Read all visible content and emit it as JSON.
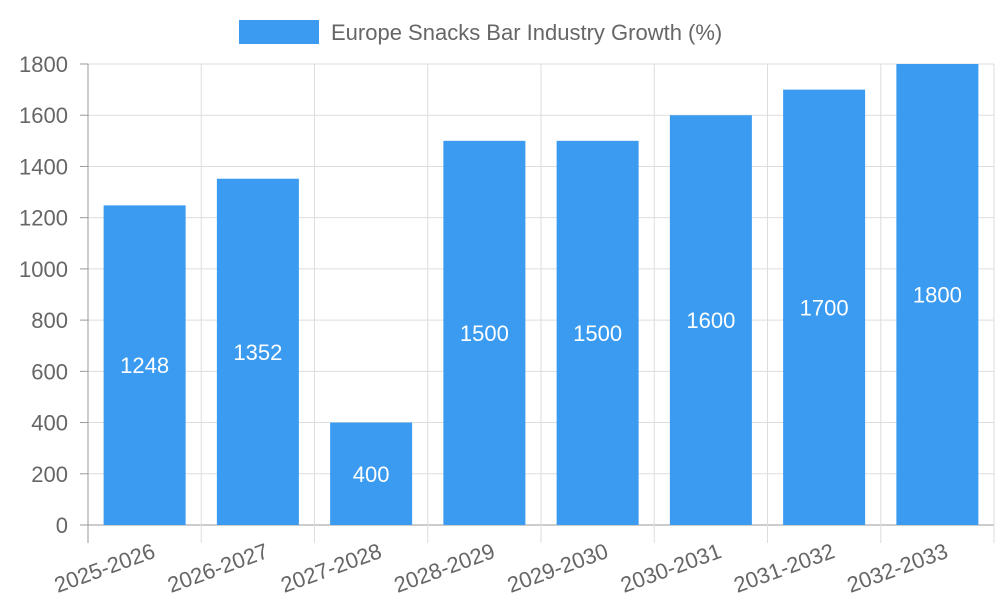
{
  "chart_data": {
    "type": "bar",
    "title": "",
    "categories": [
      "2025-2026",
      "2026-2027",
      "2027-2028",
      "2028-2029",
      "2029-2030",
      "2030-2031",
      "2031-2032",
      "2032-2033"
    ],
    "series": [
      {
        "name": "Europe Snacks Bar Industry Growth (%)",
        "values": [
          1248,
          1352,
          400,
          1500,
          1500,
          1600,
          1700,
          1800
        ],
        "color": "#3a9bf0"
      }
    ],
    "data_labels": [
      "1248",
      "1352",
      "400",
      "1500",
      "1500",
      "1600",
      "1700",
      "1800"
    ],
    "y_ticks": [
      "0",
      "200",
      "400",
      "600",
      "800",
      "1000",
      "1200",
      "1400",
      "1600",
      "1800"
    ],
    "ylim": [
      0,
      1800
    ],
    "xlabel": "",
    "ylabel": "",
    "grid": true,
    "legend_position": "top-center",
    "colors": {
      "grid": "#dddddd",
      "axis": "#999999",
      "text": "#666666",
      "data_label": "#ffffff"
    }
  }
}
